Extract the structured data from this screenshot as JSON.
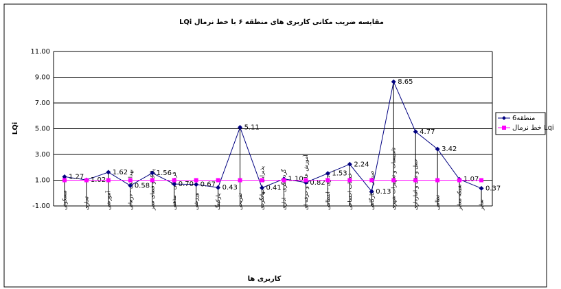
{
  "chart_data": {
    "type": "line",
    "title": "مقایسه ضریب مکانی کاربری های منطقه ۶ با خط نرمال LQi",
    "y_label": "LQi",
    "x_label": "کاربری ها",
    "categories": [
      "مسکونی",
      "تجاری",
      "آموزشی",
      "بهداشتی - درمانی",
      "پارک و فضای سبز",
      "فرهنگی - مذهبی",
      "ورزشی",
      "پارکینگ",
      "تفریحی",
      "پذیرایی - جهانگردی",
      "گردشگری - اداری",
      "آموزش عالی و حرفه ای",
      "اداری - انتظامی",
      "خدمات اجتماعی",
      "صنعتی - کارگاهی",
      "تاسیسات و تجهیزات شهری",
      "حمل و نقل و انبارداری",
      "نظامی",
      "شبکه معابر",
      "سایر"
    ],
    "series": [
      {
        "name": "منطقه6",
        "color": "#000080",
        "values": [
          1.27,
          1.02,
          1.62,
          0.58,
          1.56,
          0.7,
          0.67,
          0.43,
          5.11,
          0.41,
          1.1,
          0.82,
          1.53,
          2.24,
          0.13,
          8.65,
          4.77,
          3.42,
          1.07,
          0.37
        ],
        "value_labels": [
          "1.27",
          "1.02",
          "1.62",
          "0.58",
          "1.56",
          "0.70",
          "0.67",
          "0.43",
          "5.11",
          "0.41",
          "1.10",
          "0.82",
          "1.53",
          "2.24",
          "0.13",
          "8.65",
          "4.77",
          "3.42",
          "1.07",
          "0.37"
        ]
      },
      {
        "name": "خط نرمال Lqi",
        "color": "#ff00ff",
        "values": [
          1,
          1,
          1,
          1,
          1,
          1,
          1,
          1,
          1,
          1,
          1,
          1,
          1,
          1,
          1,
          1,
          1,
          1,
          1,
          1
        ]
      }
    ],
    "ylim": [
      -1,
      11
    ],
    "yticks": [
      {
        "value": -1,
        "label": "-1.00"
      },
      {
        "value": 1,
        "label": "1.00"
      },
      {
        "value": 3,
        "label": "3.00"
      },
      {
        "value": 5,
        "label": "5.00"
      },
      {
        "value": 7,
        "label": "7.00"
      },
      {
        "value": 9,
        "label": "9.00"
      },
      {
        "value": 11,
        "label": "11.00"
      }
    ],
    "grid": true,
    "legend": "right"
  }
}
